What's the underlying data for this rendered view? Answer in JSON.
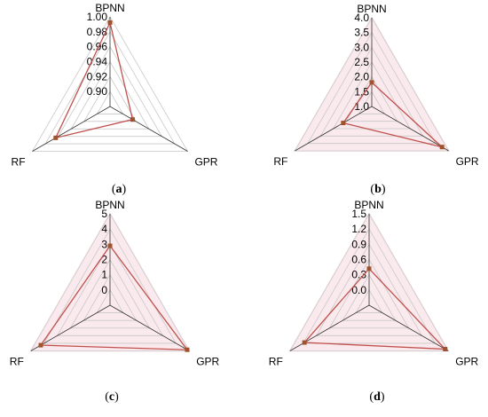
{
  "colors": {
    "series": "#c0504d",
    "marker": "#a0522d",
    "grid": "#c8c8c8",
    "band": "#f6d9df"
  },
  "chart_data": [
    {
      "type": "radar",
      "caption": {
        "letter": "a",
        "text": "(a)"
      },
      "axes": [
        "BPNN",
        "GPR",
        "RF"
      ],
      "tick_labels": [
        "0.90",
        "0.92",
        "0.94",
        "0.96",
        "0.98",
        "1.00"
      ],
      "ylim": [
        0.89,
        1.0
      ],
      "values": [
        0.993,
        0.922,
        0.967
      ],
      "band": false
    },
    {
      "type": "radar",
      "caption": {
        "letter": "b",
        "text": "(b)"
      },
      "axes": [
        "BPNN",
        "GPR",
        "RF"
      ],
      "tick_labels": [
        "1.0",
        "1.5",
        "2.0",
        "2.5",
        "3.0",
        "3.5",
        "4.0"
      ],
      "ylim": [
        0.5,
        4.0
      ],
      "values": [
        1.45,
        3.7,
        1.8
      ],
      "band": true
    },
    {
      "type": "radar",
      "caption": {
        "letter": "c",
        "text": "(c)"
      },
      "axes": [
        "BPNN",
        "GPR",
        "RF"
      ],
      "tick_labels": [
        "0",
        "1",
        "2",
        "3",
        "4",
        "5"
      ],
      "ylim": [
        -1,
        5
      ],
      "values": [
        2.9,
        4.85,
        4.25
      ],
      "band": true
    },
    {
      "type": "radar",
      "caption": {
        "letter": "d",
        "text": "(d)"
      },
      "axes": [
        "BPNN",
        "GPR",
        "RF"
      ],
      "tick_labels": [
        "0.0",
        "0.3",
        "0.6",
        "0.9",
        "1.2",
        "1.5"
      ],
      "ylim": [
        -0.3,
        1.5
      ],
      "values": [
        0.42,
        1.43,
        1.17
      ],
      "band": true
    }
  ]
}
